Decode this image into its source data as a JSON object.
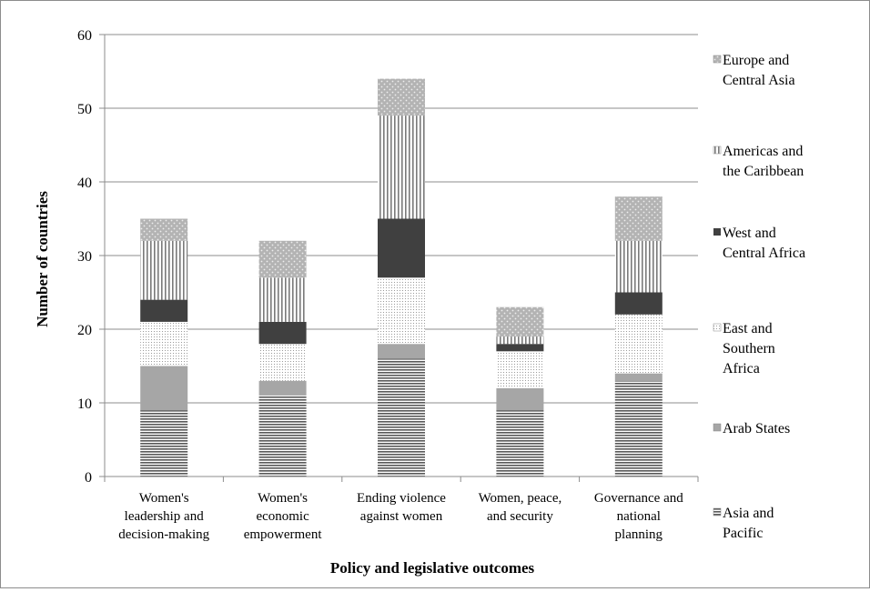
{
  "chart_data": {
    "type": "bar",
    "stacked": true,
    "xlabel": "Policy and legislative outcomes",
    "ylabel": "Number of countries",
    "ylim": [
      0,
      60
    ],
    "yticks": [
      0,
      10,
      20,
      30,
      40,
      50,
      60
    ],
    "grid": true,
    "legend_position": "right",
    "categories": [
      [
        "Women's",
        "leadership and",
        "decision-making"
      ],
      [
        "Women's",
        "economic",
        "empowerment"
      ],
      [
        "Ending violence",
        "against women"
      ],
      [
        "Women, peace,",
        "and security"
      ],
      [
        "Governance and",
        "national",
        "planning"
      ]
    ],
    "series": [
      {
        "name": [
          "Asia and",
          "Pacific"
        ],
        "pattern": "hlines",
        "values": [
          9,
          11,
          16,
          9,
          13
        ]
      },
      {
        "name": [
          "Arab States"
        ],
        "pattern": "solid-gray",
        "values": [
          6,
          2,
          2,
          3,
          1
        ]
      },
      {
        "name": [
          "East and",
          "Southern",
          "Africa"
        ],
        "pattern": "dots-fine",
        "values": [
          6,
          5,
          9,
          5,
          8
        ]
      },
      {
        "name": [
          "West and",
          "Central Africa"
        ],
        "pattern": "solid-dark",
        "values": [
          3,
          3,
          8,
          1,
          3
        ]
      },
      {
        "name": [
          "Americas and",
          "the Caribbean"
        ],
        "pattern": "vlines",
        "values": [
          8,
          6,
          14,
          1,
          7
        ]
      },
      {
        "name": [
          "Europe and",
          "Central Asia"
        ],
        "pattern": "dots-coarse",
        "values": [
          3,
          5,
          5,
          4,
          6
        ]
      }
    ],
    "legend_order": [
      5,
      4,
      3,
      2,
      1,
      0
    ],
    "colors": {
      "gridline": "#8c8c8c",
      "axis": "#8c8c8c",
      "solid_gray": "#a6a6a6",
      "solid_dark": "#404040",
      "pattern_dark": "#595959",
      "pattern_bg_gray": "#b3b3b3"
    }
  }
}
